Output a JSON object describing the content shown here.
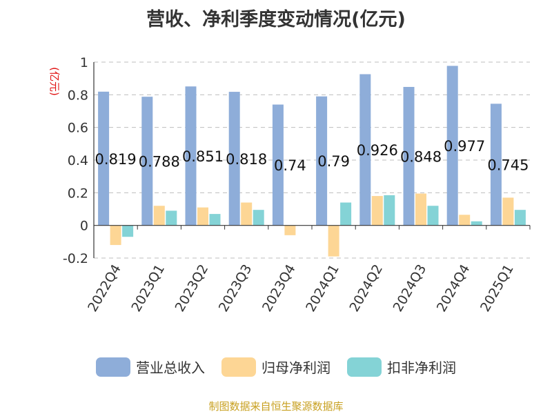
{
  "chart_data": {
    "type": "bar",
    "title": "营收、净利季度变动情况(亿元)",
    "unit_label": "(亿元)",
    "categories": [
      "2022Q4",
      "2023Q1",
      "2023Q2",
      "2023Q3",
      "2023Q4",
      "2024Q1",
      "2024Q2",
      "2024Q3",
      "2024Q4",
      "2025Q1"
    ],
    "series": [
      {
        "name": "营业总收入",
        "color": "#8eadd9",
        "values": [
          0.819,
          0.788,
          0.851,
          0.818,
          0.74,
          0.79,
          0.926,
          0.848,
          0.977,
          0.745
        ]
      },
      {
        "name": "归母净利润",
        "color": "#fdd695",
        "values": [
          -0.12,
          0.12,
          0.11,
          0.14,
          -0.06,
          -0.19,
          0.18,
          0.195,
          0.065,
          0.17
        ]
      },
      {
        "name": "扣非净利润",
        "color": "#84d3d6",
        "values": [
          -0.07,
          0.09,
          0.07,
          0.095,
          0.0,
          0.14,
          0.185,
          0.12,
          0.025,
          0.095
        ]
      }
    ],
    "data_labels": [
      "0.819",
      "0.788",
      "0.851",
      "0.818",
      "0.74",
      "0.79",
      "0.926",
      "0.848",
      "0.977",
      "0.745"
    ],
    "y_ticks": [
      "1",
      "0.8",
      "0.6",
      "0.4",
      "0.2",
      "0",
      "-0.2"
    ],
    "ylim": [
      -0.2,
      1.0
    ],
    "grid": true,
    "legend_position": "bottom",
    "source": "制图数据来自恒生聚源数据库"
  }
}
